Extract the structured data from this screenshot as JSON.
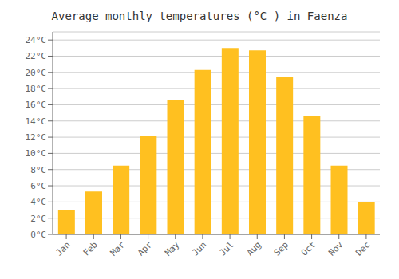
{
  "chart_data": {
    "type": "bar",
    "title": "Average monthly temperatures (°C ) in Faenza",
    "categories": [
      "Jan",
      "Feb",
      "Mar",
      "Apr",
      "May",
      "Jun",
      "Jul",
      "Aug",
      "Sep",
      "Oct",
      "Nov",
      "Dec"
    ],
    "values": [
      3.0,
      5.3,
      8.5,
      12.2,
      16.6,
      20.3,
      23.0,
      22.7,
      19.5,
      14.6,
      8.5,
      4.0
    ],
    "color": "#FFC020",
    "ylim": [
      0,
      25
    ],
    "yticks": [
      {
        "value": 0,
        "label": "0°C"
      },
      {
        "value": 2,
        "label": "2°C"
      },
      {
        "value": 4,
        "label": "4°C"
      },
      {
        "value": 6,
        "label": "6°C"
      },
      {
        "value": 8,
        "label": "8°C"
      },
      {
        "value": 10,
        "label": "10°C"
      },
      {
        "value": 12,
        "label": "12°C"
      },
      {
        "value": 14,
        "label": "14°C"
      },
      {
        "value": 16,
        "label": "16°C"
      },
      {
        "value": 18,
        "label": "18°C"
      },
      {
        "value": 20,
        "label": "20°C"
      },
      {
        "value": 22,
        "label": "22°C"
      },
      {
        "value": 24,
        "label": "24°C"
      }
    ],
    "grid": true
  }
}
